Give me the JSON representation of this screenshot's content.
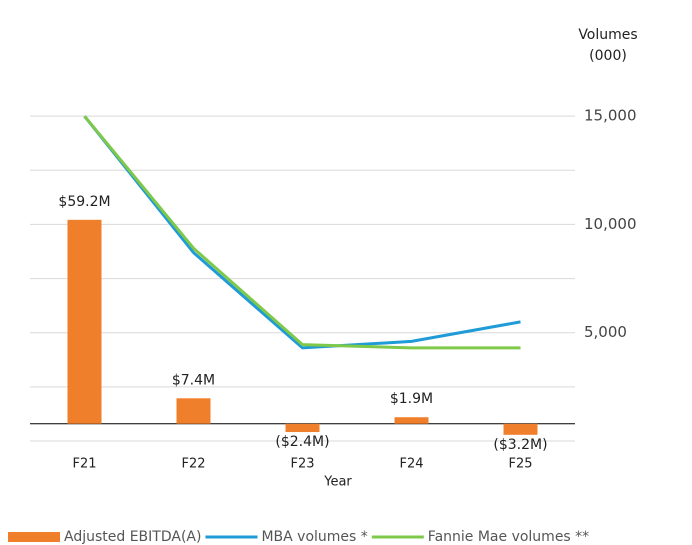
{
  "chart_data": {
    "type": "bar_line",
    "y2_label": [
      "Volumes",
      "(000)"
    ],
    "x_label": "Year",
    "categories": [
      "F21",
      "F22",
      "F23",
      "F24",
      "F25"
    ],
    "series": [
      {
        "name": "Adjusted EBITDA(A)",
        "type": "bar",
        "color": "#f07f2b",
        "values": [
          59.2,
          7.4,
          -2.4,
          1.9,
          -3.2
        ],
        "value_labels": [
          "$59.2M",
          "$7.4M",
          "($2.4M)",
          "$1.9M",
          "($3.2M)"
        ]
      },
      {
        "name": "MBA volumes *",
        "type": "line",
        "axis": "y2",
        "color": "#1f9bd7",
        "values": [
          15000,
          8700,
          4300,
          4600,
          5500
        ]
      },
      {
        "name": "Fannie Mae volumes **",
        "type": "line",
        "axis": "y2",
        "color": "#7ec94a",
        "values": [
          15000,
          8900,
          4450,
          4300,
          4300
        ]
      }
    ],
    "ylim": [
      -5,
      105
    ],
    "y2lim": [
      0,
      17500
    ],
    "y2ticks": [
      {
        "value": 5000,
        "label": "5,000"
      },
      {
        "value": 10000,
        "label": "10,000"
      },
      {
        "value": 15000,
        "label": "15,000"
      }
    ],
    "y2_minor_grid": [
      2500,
      7500,
      12500
    ],
    "grid": true,
    "legend": "bottom"
  }
}
